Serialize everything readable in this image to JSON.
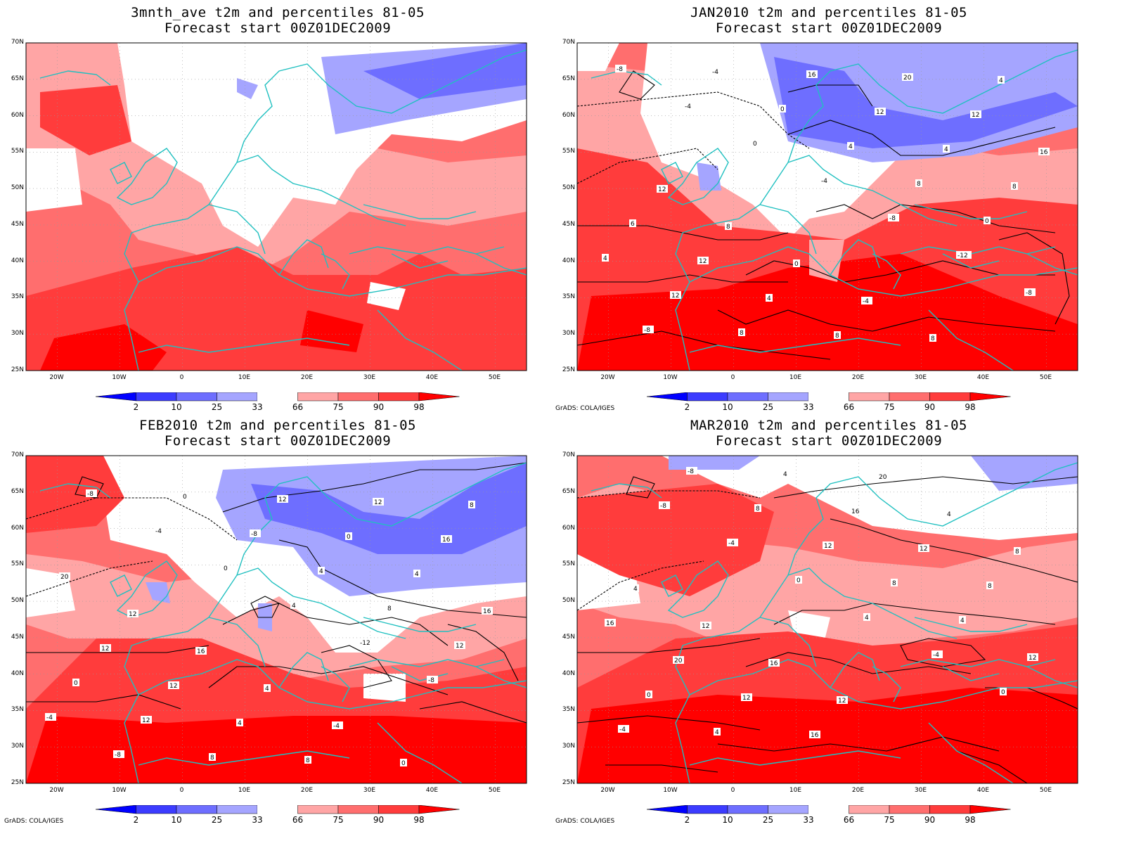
{
  "panels": [
    {
      "title_line1": "3mnth_ave t2m and percentiles 81-05",
      "title_line2": "Forecast start 00Z01DEC2009",
      "credit": "",
      "variant": 0
    },
    {
      "title_line1": "JAN2010 t2m and percentiles 81-05",
      "title_line2": "Forecast start 00Z01DEC2009",
      "credit": "GrADS: COLA/IGES",
      "variant": 1
    },
    {
      "title_line1": "FEB2010 t2m and percentiles 81-05",
      "title_line2": "Forecast start 00Z01DEC2009",
      "credit": "GrADS: COLA/IGES",
      "variant": 2
    },
    {
      "title_line1": "MAR2010 t2m and percentiles 81-05",
      "title_line2": "Forecast start 00Z01DEC2009",
      "credit": "GrADS: COLA/IGES",
      "variant": 3
    }
  ],
  "axes": {
    "lat_labels": [
      "70N",
      "65N",
      "60N",
      "55N",
      "50N",
      "45N",
      "40N",
      "35N",
      "30N",
      "25N"
    ],
    "lon_labels": [
      "20W",
      "10W",
      "0",
      "10E",
      "20E",
      "30E",
      "40E",
      "50E"
    ],
    "lat_range": [
      25,
      70
    ],
    "lon_range": [
      -25,
      55
    ]
  },
  "colorbar": {
    "labels": [
      "2",
      "10",
      "25",
      "33",
      "66",
      "75",
      "90",
      "98"
    ],
    "colors": [
      "#0000ff",
      "#3c3cff",
      "#6e6eff",
      "#a5a5ff",
      "#ffffff",
      "#ffa5a5",
      "#ff6e6e",
      "#ff3c3c",
      "#ff0000"
    ]
  },
  "contour_labels": {
    "jan": [
      "-8",
      "-4",
      "0",
      "-4",
      "-8",
      "-12",
      "-8",
      "-8",
      "-4",
      "0",
      "4",
      "8",
      "0",
      "4",
      "12",
      "8",
      "16",
      "12",
      "4",
      "8",
      "6",
      "12",
      "4",
      "8",
      "20",
      "12",
      "16",
      "12",
      "8",
      "0",
      "-4",
      "8",
      "4"
    ],
    "feb": [
      "-8",
      "-4",
      "0",
      "4",
      "-12",
      "-8",
      "-4",
      "-8",
      "0",
      "-8",
      "4",
      "8",
      "12",
      "0",
      "12",
      "8",
      "12",
      "0",
      "4",
      "16",
      "12",
      "12",
      "4",
      "8",
      "12",
      "16",
      "20",
      "12",
      "16",
      "4",
      "-4",
      "0",
      "8"
    ],
    "mar": [
      "-8",
      "-4",
      "0",
      "4",
      "-4",
      "0",
      "-4",
      "-8",
      "8",
      "12",
      "8",
      "4",
      "12",
      "0",
      "4",
      "4",
      "16",
      "12",
      "8",
      "16",
      "20",
      "12",
      "16",
      "20",
      "4",
      "8",
      "4",
      "12",
      "16",
      "12"
    ]
  }
}
